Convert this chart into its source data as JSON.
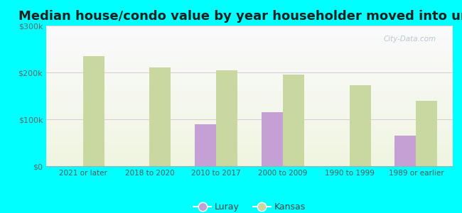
{
  "categories": [
    "2021 or later",
    "2018 to 2020",
    "2010 to 2017",
    "2000 to 2009",
    "1990 to 1999",
    "1989 or earlier"
  ],
  "luray_values": [
    null,
    null,
    90000,
    115000,
    null,
    65000
  ],
  "kansas_values": [
    235000,
    210000,
    205000,
    195000,
    172000,
    140000
  ],
  "luray_color": "#c4a0d4",
  "kansas_color": "#c8d8a0",
  "title": "Median house/condo value by year householder moved into unit",
  "ylim": [
    0,
    300000
  ],
  "yticks": [
    0,
    100000,
    200000,
    300000
  ],
  "ytick_labels": [
    "$0",
    "$100k",
    "$200k",
    "$300k"
  ],
  "figure_bg": "#00FFFF",
  "legend_luray": "Luray",
  "legend_kansas": "Kansas",
  "title_fontsize": 13,
  "bar_width": 0.32,
  "watermark": "City-Data.com"
}
